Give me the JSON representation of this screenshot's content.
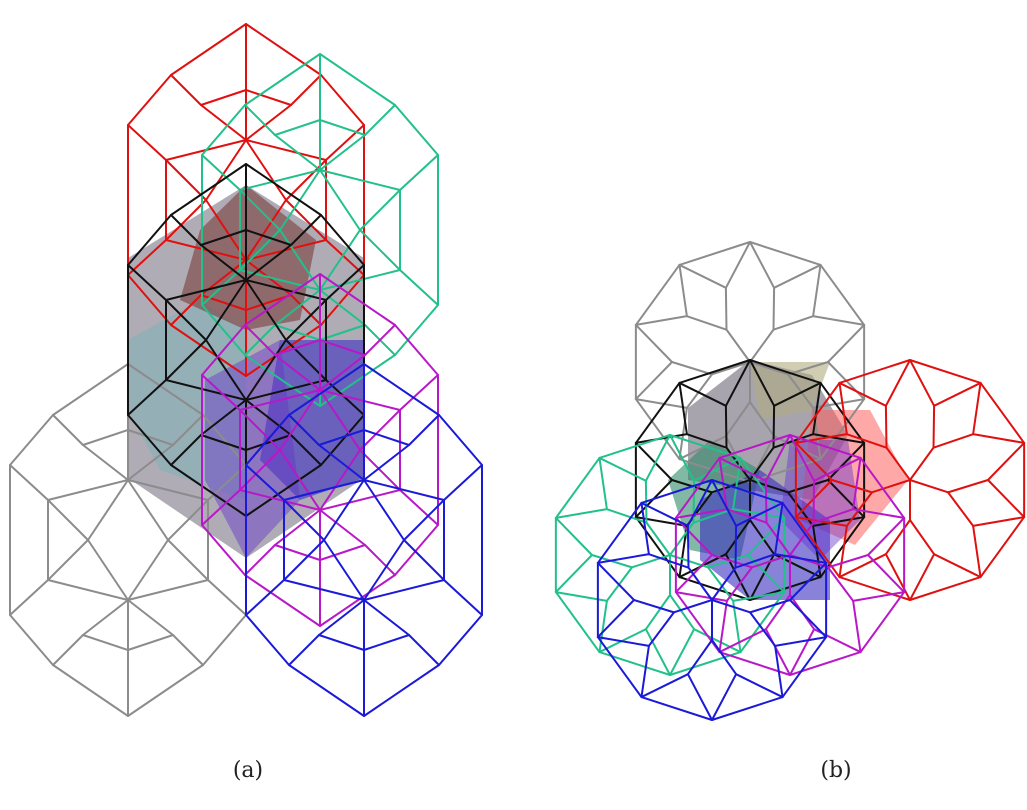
{
  "captions": {
    "a": "(a)",
    "b": "(b)"
  },
  "panels": [
    {
      "id": "a",
      "cells": [
        "gray",
        "red",
        "green",
        "black",
        "magenta",
        "blue"
      ]
    },
    {
      "id": "b",
      "cells": [
        "gray",
        "black",
        "red",
        "green",
        "magenta",
        "blue"
      ]
    }
  ],
  "colors": {
    "gray": "#8c8c8c",
    "black": "#111111",
    "red": "#e01010",
    "green": "#22c08a",
    "magenta": "#b818c8",
    "blue": "#1a1ad8",
    "shade_gray": "#6d6878",
    "shade_olive": "#b0ac80",
    "shade_teal": "#7fb2b8",
    "shade_red": "#ff6060",
    "shade_purple": "#6633cc",
    "shade_blue": "#3a2fbf",
    "shade_green": "#2f8a68"
  }
}
